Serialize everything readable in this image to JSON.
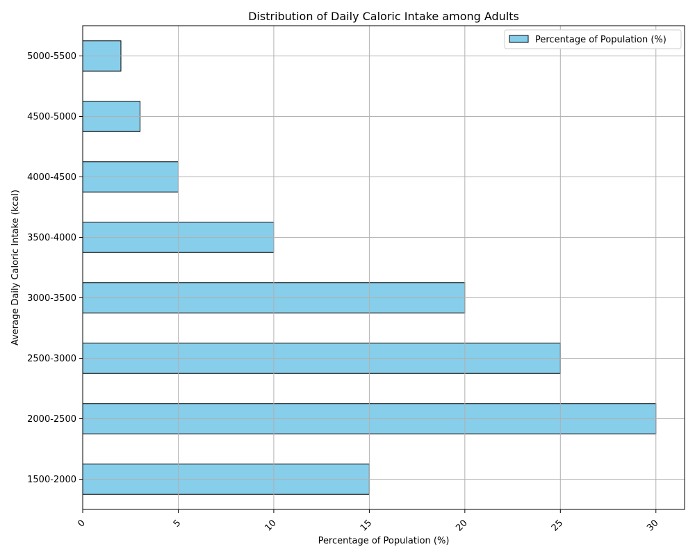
{
  "chart_data": {
    "type": "bar",
    "orientation": "horizontal",
    "title": "Distribution of Daily Caloric Intake among Adults",
    "xlabel": "Percentage of Population (%)",
    "ylabel": "Average Daily Caloric Intake (kcal)",
    "categories": [
      "1500-2000",
      "2000-2500",
      "2500-3000",
      "3000-3500",
      "3500-4000",
      "4000-4500",
      "4500-5000",
      "5000-5500"
    ],
    "series": [
      {
        "name": "Percentage of Population (%)",
        "values": [
          15,
          30,
          25,
          20,
          10,
          5,
          3,
          2
        ]
      }
    ],
    "xlim": [
      0,
      31.5
    ],
    "xticks": [
      0,
      5,
      10,
      15,
      20,
      25,
      30
    ],
    "grid": true,
    "legend": "top-right",
    "bar_color": "#87ceeb",
    "edge_color": "#000000"
  }
}
